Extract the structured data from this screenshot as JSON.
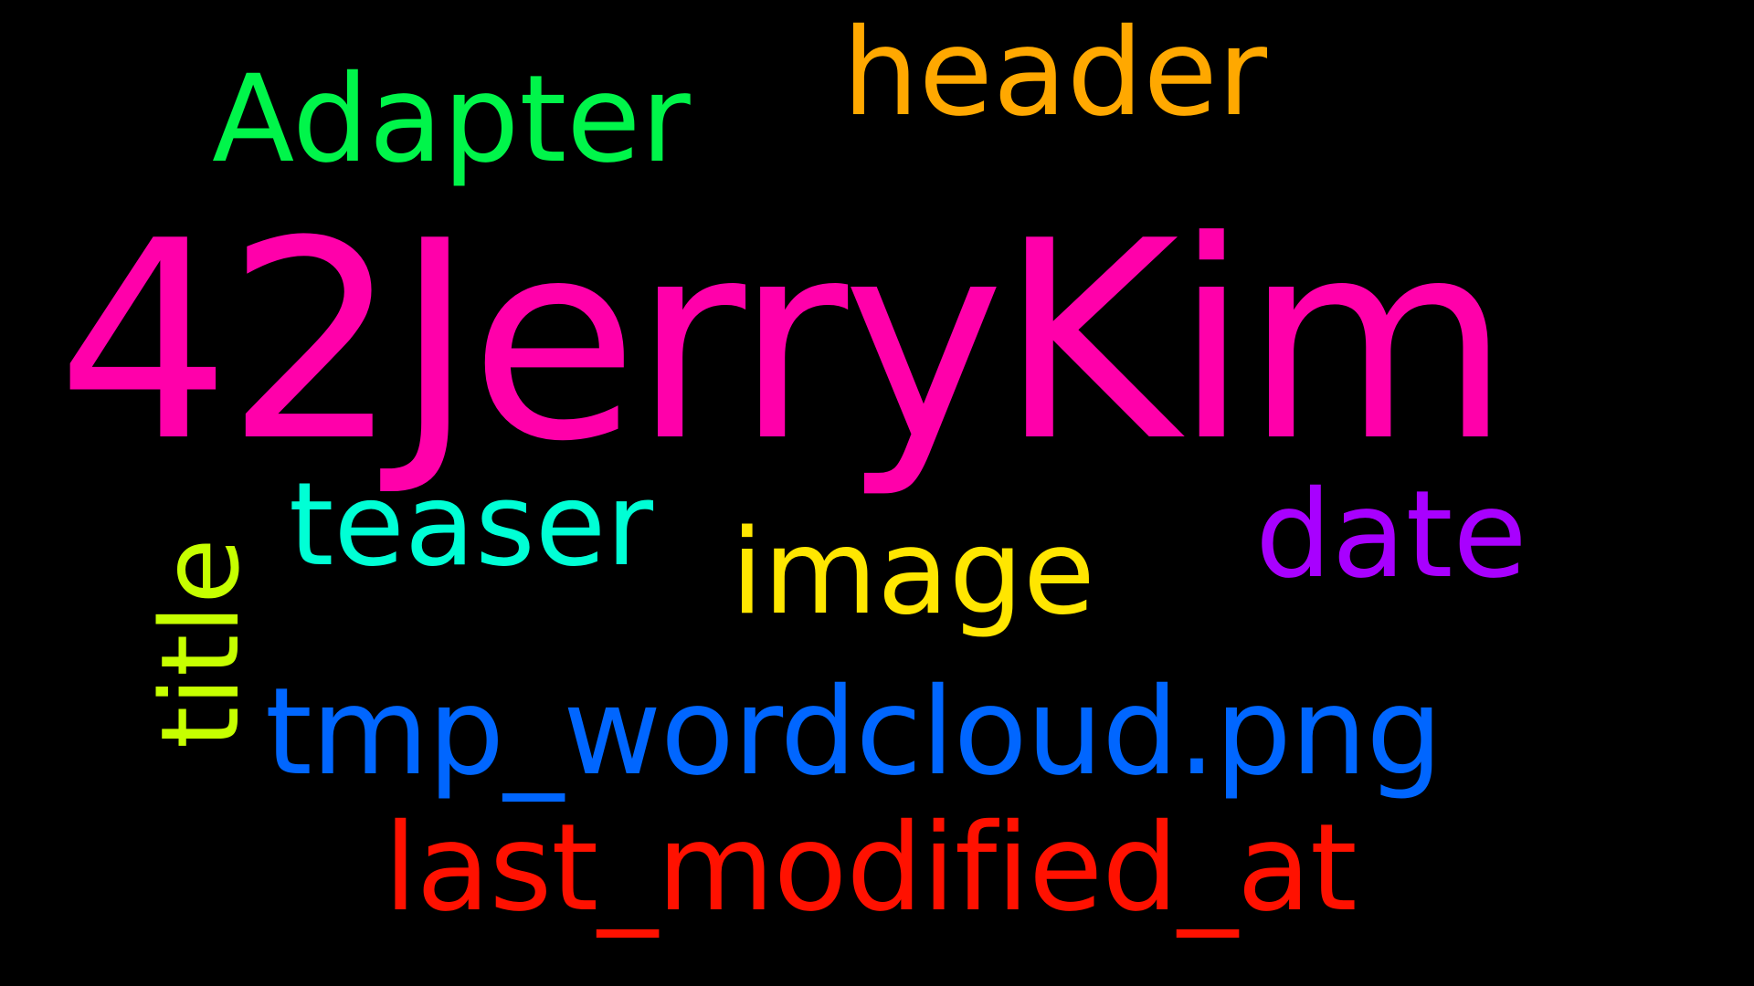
{
  "wordcloud": {
    "background": "#000000",
    "words": {
      "main": {
        "text": "42JerryKim",
        "color": "#FF00AA"
      },
      "adapter": {
        "text": "Adapter",
        "color": "#00F54A"
      },
      "header": {
        "text": "header",
        "color": "#FFA800"
      },
      "teaser": {
        "text": "teaser",
        "color": "#00FFD5"
      },
      "image": {
        "text": "image",
        "color": "#FFE600"
      },
      "date": {
        "text": "date",
        "color": "#A800FF"
      },
      "title": {
        "text": "title",
        "color": "#C6FF00"
      },
      "tmp": {
        "text": "tmp_wordcloud.png",
        "color": "#0066FF"
      },
      "last": {
        "text": "last_modified_at",
        "color": "#FF1100"
      }
    }
  }
}
